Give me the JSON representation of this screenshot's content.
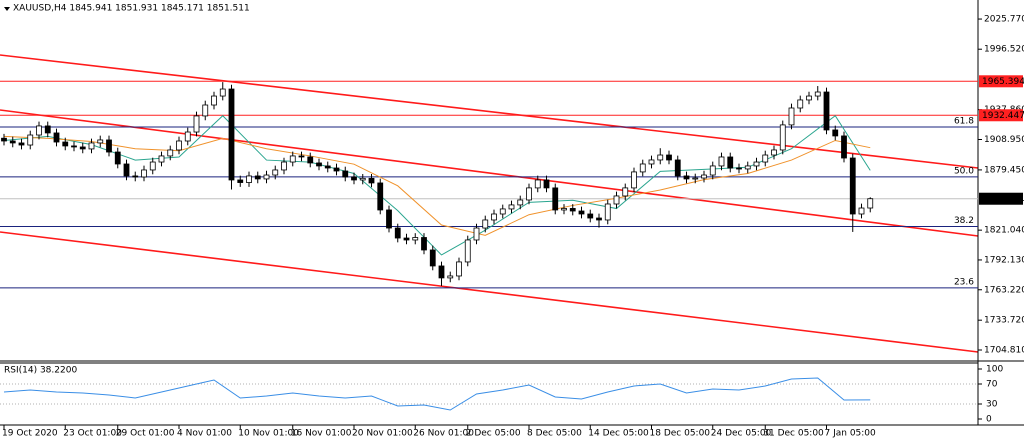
{
  "chart_data": [
    {
      "type": "candlestick",
      "title": "XAUUSD,H4  1845.941 1851.931 1845.171 1851.511",
      "categories": [
        "19 Oct 2020",
        null,
        null,
        null,
        null,
        null,
        null,
        "23 Oct 01:00",
        null,
        null,
        null,
        null,
        null,
        "29 Oct 01:00",
        null,
        null,
        null,
        null,
        null,
        null,
        "4 Nov 01:00",
        null,
        null,
        null,
        null,
        null,
        null,
        "10 Nov 01:00",
        null,
        null,
        null,
        null,
        null,
        "16 Nov 01:00",
        null,
        null,
        null,
        null,
        null,
        null,
        "20 Nov 01:00",
        null,
        null,
        null,
        null,
        null,
        null,
        "26 Nov 01:00",
        null,
        null,
        null,
        null,
        null,
        "2 Dec 05:00",
        null,
        null,
        null,
        null,
        null,
        null,
        "8 Dec 05:00",
        null,
        null,
        null,
        null,
        null,
        null,
        "14 Dec 05:00",
        null,
        null,
        null,
        null,
        null,
        null,
        "18 Dec 05:00",
        null,
        null,
        null,
        null,
        null,
        null,
        "24 Dec 05:00",
        null,
        null,
        null,
        null,
        null,
        "31 Dec 05:00",
        null,
        null,
        null,
        null,
        null,
        null,
        "7 Jan 05:00",
        null,
        null,
        null,
        null,
        null
      ],
      "open": [
        1910.2,
        1907.5,
        1905.6,
        1903.6,
        1913.3,
        1922.1,
        1915.3,
        1906.5,
        1902.7,
        1901.7,
        1899.8,
        1905.6,
        1908.5,
        1896.8,
        1885.2,
        1873.6,
        1872.6,
        1879.4,
        1887.1,
        1893.0,
        1898.8,
        1907.5,
        1916.2,
        1931.8,
        1942.4,
        1951.1,
        1957.9,
        1869.7,
        1867.2,
        1873.6,
        1870.7,
        1874.5,
        1879.4,
        1887.1,
        1893.0,
        1892.0,
        1886.2,
        1883.3,
        1881.3,
        1878.4,
        1872.6,
        1869.7,
        1871.3,
        1866.8,
        1840.6,
        1823.1,
        1813.4,
        1811.5,
        1813.9,
        1801.8,
        1786.3,
        1774.7,
        1776.6,
        1790.2,
        1811.5,
        1823.1,
        1830.9,
        1836.7,
        1841.6,
        1845.5,
        1850.3,
        1862.0,
        1869.7,
        1862.0,
        1840.6,
        1842.1,
        1839.6,
        1836.7,
        1832.8,
        1830.9,
        1846.4,
        1854.2,
        1862.0,
        1877.5,
        1885.2,
        1889.1,
        1893.9,
        1889.1,
        1873.6,
        1870.7,
        1871.6,
        1874.5,
        1883.3,
        1892.0,
        1881.3,
        1880.4,
        1883.3,
        1887.1,
        1893.9,
        1898.8,
        1923.1,
        1939.5,
        1947.3,
        1951.1,
        1955.0,
        1918.2,
        1912.4,
        1891.0,
        1836.7,
        1842.5
      ],
      "high": [
        1914.4,
        1911.7,
        1909.8,
        1917.5,
        1926.3,
        1926.3,
        1919.5,
        1910.7,
        1906.9,
        1905.9,
        1909.8,
        1912.7,
        1912.7,
        1901.0,
        1889.4,
        1877.8,
        1883.6,
        1891.3,
        1897.2,
        1903.0,
        1911.7,
        1920.4,
        1936.0,
        1946.6,
        1955.3,
        1964.6,
        1962.1,
        1873.9,
        1877.8,
        1877.8,
        1878.7,
        1883.6,
        1891.3,
        1897.2,
        1897.2,
        1896.2,
        1890.4,
        1887.5,
        1885.5,
        1882.6,
        1876.8,
        1875.5,
        1875.5,
        1871.0,
        1844.8,
        1827.3,
        1817.6,
        1818.1,
        1818.1,
        1806.0,
        1790.5,
        1780.8,
        1794.4,
        1815.7,
        1827.3,
        1835.1,
        1840.9,
        1845.8,
        1849.7,
        1854.5,
        1866.2,
        1873.9,
        1873.9,
        1866.2,
        1846.3,
        1846.3,
        1843.8,
        1840.9,
        1837.0,
        1850.6,
        1858.4,
        1866.2,
        1881.7,
        1889.4,
        1893.3,
        1900.5,
        1898.1,
        1893.3,
        1877.8,
        1875.8,
        1878.7,
        1887.5,
        1896.2,
        1896.2,
        1885.5,
        1887.5,
        1891.3,
        1898.1,
        1903.0,
        1927.3,
        1943.7,
        1951.5,
        1955.3,
        1960.8,
        1959.2,
        1922.4,
        1916.6,
        1895.2,
        1846.7,
        1852.9
      ],
      "low": [
        1903.3,
        1901.4,
        1899.4,
        1899.4,
        1909.1,
        1911.1,
        1902.3,
        1898.5,
        1897.5,
        1895.6,
        1895.6,
        1901.4,
        1892.6,
        1881.0,
        1869.4,
        1868.4,
        1868.4,
        1875.2,
        1882.9,
        1888.8,
        1894.6,
        1903.3,
        1912.0,
        1927.6,
        1938.2,
        1946.9,
        1860.5,
        1863.0,
        1863.0,
        1866.5,
        1866.5,
        1870.3,
        1875.2,
        1882.9,
        1887.8,
        1882.0,
        1879.1,
        1877.1,
        1874.2,
        1868.4,
        1865.5,
        1865.5,
        1862.6,
        1836.4,
        1818.9,
        1809.2,
        1807.3,
        1807.3,
        1797.6,
        1782.1,
        1766.9,
        1770.5,
        1772.4,
        1786.0,
        1807.3,
        1818.9,
        1826.7,
        1832.5,
        1837.4,
        1841.3,
        1846.1,
        1857.8,
        1857.8,
        1836.4,
        1836.4,
        1835.4,
        1832.5,
        1828.6,
        1823.5,
        1826.7,
        1842.2,
        1850.0,
        1857.8,
        1873.3,
        1881.0,
        1884.9,
        1884.9,
        1869.4,
        1866.5,
        1866.5,
        1867.4,
        1870.3,
        1879.1,
        1877.1,
        1876.2,
        1876.2,
        1879.1,
        1882.9,
        1889.7,
        1894.6,
        1918.9,
        1935.3,
        1943.1,
        1946.9,
        1914.0,
        1908.2,
        1886.8,
        1819.3,
        1832.5,
        1838.3
      ],
      "close": [
        1907.5,
        1905.6,
        1903.6,
        1913.3,
        1922.1,
        1915.3,
        1906.5,
        1902.7,
        1901.7,
        1899.8,
        1905.6,
        1908.5,
        1896.8,
        1885.2,
        1873.6,
        1872.6,
        1879.4,
        1887.1,
        1893.0,
        1898.8,
        1907.5,
        1916.2,
        1931.8,
        1942.4,
        1951.1,
        1957.9,
        1869.7,
        1867.2,
        1873.6,
        1870.7,
        1874.5,
        1879.4,
        1887.1,
        1893.0,
        1892.0,
        1886.2,
        1883.3,
        1881.3,
        1878.4,
        1872.6,
        1869.7,
        1871.3,
        1866.8,
        1840.6,
        1823.1,
        1813.4,
        1811.5,
        1813.9,
        1801.8,
        1786.3,
        1774.7,
        1776.6,
        1790.2,
        1811.5,
        1823.1,
        1830.9,
        1836.7,
        1841.6,
        1845.5,
        1850.3,
        1862.0,
        1869.7,
        1862.0,
        1840.6,
        1842.1,
        1839.6,
        1836.7,
        1832.8,
        1830.9,
        1846.4,
        1854.2,
        1862.0,
        1877.5,
        1885.2,
        1889.1,
        1893.9,
        1889.1,
        1873.6,
        1870.7,
        1871.6,
        1874.5,
        1883.3,
        1892.0,
        1881.3,
        1880.4,
        1883.3,
        1887.1,
        1893.9,
        1898.8,
        1923.1,
        1939.5,
        1947.3,
        1951.1,
        1955.0,
        1918.2,
        1912.4,
        1891.0,
        1836.7,
        1842.5,
        1851.5
      ],
      "ylim": [
        1695.1,
        2042.3
      ],
      "yticks": [
        {
          "value": 2025.77,
          "label": "2025.770"
        },
        {
          "value": 1996.52,
          "label": "1996.520"
        },
        {
          "value": 1937.86,
          "label": "1937.860"
        },
        {
          "value": 1908.95,
          "label": "1908.950"
        },
        {
          "value": 1879.45,
          "label": "1879.450"
        },
        {
          "value": 1821.04,
          "label": "1821.040"
        },
        {
          "value": 1792.13,
          "label": "1792.130"
        },
        {
          "value": 1763.22,
          "label": "1763.220"
        },
        {
          "value": 1733.72,
          "label": "1733.720"
        },
        {
          "value": 1704.81,
          "label": "1704.810"
        }
      ],
      "overlays": [
        {
          "color": "#2aa58f",
          "x": [
            0,
            5,
            10,
            15,
            20,
            25,
            30,
            35,
            40,
            45,
            50,
            55,
            60,
            65,
            70,
            75,
            80,
            85,
            90,
            95,
            99
          ],
          "values": [
            1908,
            1912,
            1904,
            1889,
            1892,
            1932,
            1889,
            1887,
            1876,
            1840,
            1797,
            1821,
            1848,
            1850,
            1842,
            1878,
            1880,
            1882,
            1900,
            1932,
            1879
          ]
        },
        {
          "color": "#f0922b",
          "x": [
            0,
            5,
            10,
            15,
            20,
            25,
            30,
            35,
            40,
            45,
            50,
            55,
            60,
            65,
            70,
            75,
            80,
            85,
            90,
            95,
            99
          ],
          "values": [
            1912,
            1910,
            1907,
            1900,
            1898,
            1910,
            1900,
            1893,
            1885,
            1864,
            1826,
            1816,
            1836,
            1845,
            1852,
            1860,
            1870,
            1876,
            1889,
            1908,
            1901
          ]
        }
      ],
      "levels": [
        {
          "value": 1965.394,
          "color": "#ff2020"
        },
        {
          "value": 1932.447,
          "color": "#ff2020"
        }
      ],
      "current_price": 1851.511,
      "fib_color": "#1a237e",
      "fib_levels": [
        {
          "level": 61.8,
          "price": 1921.1
        },
        {
          "level": {
            "value": 50,
            "label": "50.0"
          },
          "price": 1872.7
        },
        {
          "level": 38.2,
          "price": 1824.6
        },
        {
          "level": 23.6,
          "price": 1765.0
        }
      ]
    },
    {
      "type": "line",
      "title": "RSI(14) 38.2200",
      "x": [
        0,
        3,
        6,
        9,
        12,
        15,
        18,
        21,
        24,
        27,
        30,
        33,
        36,
        39,
        42,
        45,
        48,
        51,
        54,
        57,
        60,
        63,
        66,
        69,
        72,
        75,
        78,
        81,
        84,
        87,
        90,
        93,
        96,
        99
      ],
      "series": [
        {
          "color": "#3a8ee6",
          "values": [
            54,
            58,
            54,
            52,
            48,
            42,
            54,
            66,
            78,
            42,
            46,
            52,
            46,
            42,
            46,
            26,
            28,
            18,
            50,
            58,
            68,
            44,
            40,
            54,
            66,
            70,
            52,
            60,
            58,
            66,
            80,
            82,
            38,
            38.22
          ]
        }
      ],
      "ylim": [
        0,
        100
      ],
      "yticks": [
        100,
        70,
        30,
        0
      ]
    }
  ]
}
